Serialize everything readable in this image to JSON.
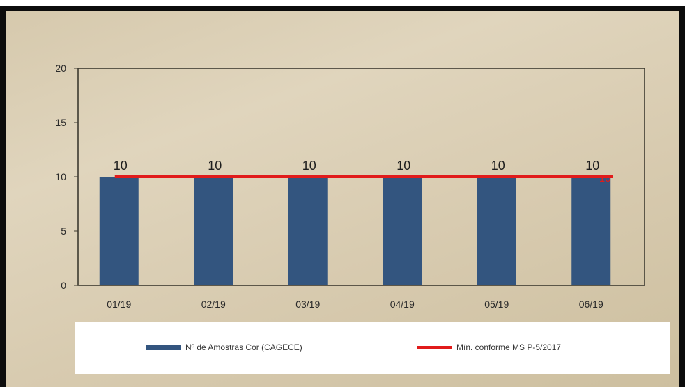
{
  "chart_data": {
    "type": "bar",
    "title": "",
    "xlabel": "",
    "ylabel": "",
    "categories": [
      "01/19",
      "02/19",
      "03/19",
      "04/19",
      "05/19",
      "06/19"
    ],
    "series": [
      {
        "name": "Nº de Amostras Cor (CAGECE)",
        "type": "bar",
        "values": [
          10,
          10,
          10,
          10,
          10,
          10
        ],
        "data_labels": [
          "10",
          "10",
          "10",
          "10",
          "10",
          "10"
        ],
        "color": "#33557f"
      },
      {
        "name": "Mín. conforme MS  P-5/2017",
        "type": "line",
        "values": [
          10,
          10,
          10,
          10,
          10,
          10
        ],
        "end_label": "10",
        "color": "#e11b1b"
      }
    ],
    "ylim": [
      0,
      20
    ],
    "yticks": [
      "0",
      "5",
      "10",
      "15",
      "20"
    ],
    "grid": false,
    "legend_position": "bottom"
  }
}
